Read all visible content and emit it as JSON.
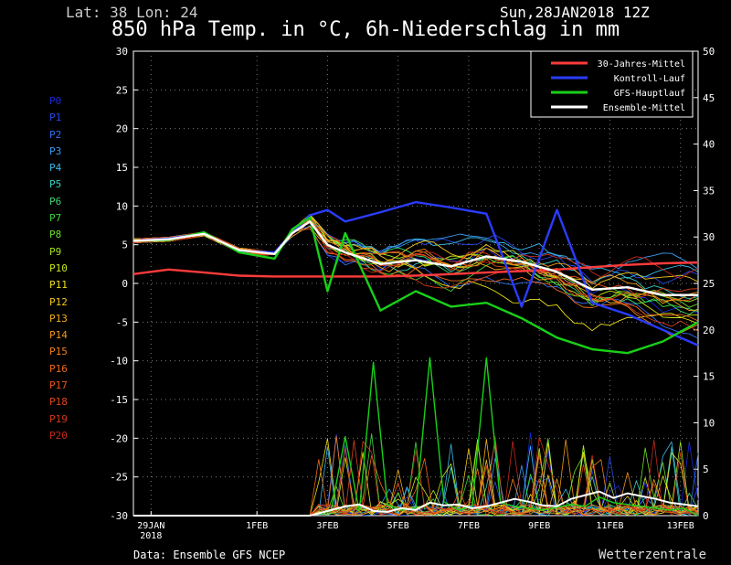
{
  "header": {
    "location": "Lat: 38 Lon: 24",
    "run_date": "Sun,28JAN2018 12Z",
    "title": "850 hPa Temp. in °C, 6h-Niederschlag in mm"
  },
  "footer": {
    "source": "Data: Ensemble GFS NCEP",
    "brand": "Wetterzentrale"
  },
  "members": [
    {
      "label": "P0",
      "color": "#1a2ad8"
    },
    {
      "label": "P1",
      "color": "#2a48e8"
    },
    {
      "label": "P2",
      "color": "#2f6ef0"
    },
    {
      "label": "P3",
      "color": "#3a9cf0"
    },
    {
      "label": "P4",
      "color": "#3ab8e8"
    },
    {
      "label": "P5",
      "color": "#36cfc4"
    },
    {
      "label": "P6",
      "color": "#40d470"
    },
    {
      "label": "P7",
      "color": "#3ad83a"
    },
    {
      "label": "P8",
      "color": "#6ede2a"
    },
    {
      "label": "P9",
      "color": "#a4e21e"
    },
    {
      "label": "P10",
      "color": "#c8e41a"
    },
    {
      "label": "P11",
      "color": "#ece01a"
    },
    {
      "label": "P12",
      "color": "#f0c81a"
    },
    {
      "label": "P13",
      "color": "#f0ae1a"
    },
    {
      "label": "P14",
      "color": "#f0961a"
    },
    {
      "label": "P15",
      "color": "#f07e1a"
    },
    {
      "label": "P16",
      "color": "#f06a1a"
    },
    {
      "label": "P17",
      "color": "#ea541a"
    },
    {
      "label": "P18",
      "color": "#e0441a"
    },
    {
      "label": "P19",
      "color": "#d43a1a"
    },
    {
      "label": "P20",
      "color": "#c42a1a"
    }
  ],
  "chart_data": {
    "type": "line",
    "x_unit": "days since 28JAN2018 12Z",
    "x_range": [
      0,
      16
    ],
    "y_left": {
      "range": [
        -30,
        30
      ],
      "ticks": [
        -30,
        -25,
        -20,
        -15,
        -10,
        -5,
        0,
        5,
        10,
        15,
        20,
        25,
        30
      ]
    },
    "y_right": {
      "range": [
        0,
        50
      ],
      "ticks": [
        0,
        5,
        10,
        15,
        20,
        25,
        30,
        35,
        40,
        45,
        50
      ]
    },
    "x_ticks": [
      {
        "day": 0.5,
        "label": "29JAN",
        "sub": "2018"
      },
      {
        "day": 3.5,
        "label": "1FEB"
      },
      {
        "day": 5.5,
        "label": "3FEB"
      },
      {
        "day": 7.5,
        "label": "5FEB"
      },
      {
        "day": 9.5,
        "label": "7FEB"
      },
      {
        "day": 11.5,
        "label": "9FEB"
      },
      {
        "day": 13.5,
        "label": "11FEB"
      },
      {
        "day": 15.5,
        "label": "13FEB"
      }
    ],
    "grid": "dotted",
    "legend": {
      "position": "top-right",
      "entries": [
        {
          "name": "30-Jahres-Mittel",
          "color": "#ff3b3b"
        },
        {
          "name": "Kontroll-Lauf",
          "color": "#2a3cff"
        },
        {
          "name": "GFS-Hauptlauf",
          "color": "#18d018"
        },
        {
          "name": "Ensemble-Mittel",
          "color": "#ffffff"
        }
      ]
    },
    "series": [
      {
        "name": "30-Jahres-Mittel",
        "axis": "temp",
        "x": [
          0,
          1,
          2,
          3,
          4,
          5,
          6,
          7,
          8,
          9,
          10,
          11,
          12,
          13,
          14,
          15,
          16
        ],
        "values": [
          1.2,
          1.8,
          1.4,
          1.0,
          0.9,
          0.9,
          0.9,
          0.9,
          1.0,
          1.2,
          1.4,
          1.6,
          1.8,
          2.1,
          2.4,
          2.6,
          2.7
        ]
      },
      {
        "name": "Kontroll-Lauf",
        "axis": "temp",
        "x": [
          0,
          1,
          2,
          3,
          4,
          4.5,
          5,
          5.5,
          6,
          7,
          8,
          9,
          10,
          11,
          12,
          13,
          14,
          15,
          16
        ],
        "values": [
          5.5,
          5.8,
          6.5,
          4.2,
          4.0,
          6.5,
          8.8,
          9.5,
          8.0,
          9.2,
          10.5,
          9.8,
          9.0,
          -3.0,
          9.5,
          -2.5,
          -4.0,
          -6.0,
          -8.0
        ]
      },
      {
        "name": "GFS-Hauptlauf",
        "axis": "temp",
        "x": [
          0,
          1,
          2,
          3,
          4,
          4.5,
          5,
          5.5,
          6,
          7,
          8,
          9,
          10,
          11,
          12,
          13,
          14,
          15,
          16
        ],
        "values": [
          5.5,
          5.6,
          6.6,
          4.0,
          3.2,
          7.0,
          8.5,
          -1.0,
          6.5,
          -3.5,
          -1.0,
          -3.0,
          -2.5,
          -4.5,
          -7.0,
          -8.5,
          -9.0,
          -7.5,
          -5.0
        ]
      },
      {
        "name": "Ensemble-Mittel",
        "axis": "temp",
        "x": [
          0,
          1,
          2,
          3,
          4,
          4.5,
          5,
          5.5,
          6,
          7,
          8,
          9,
          10,
          11,
          12,
          13,
          14,
          15,
          16
        ],
        "values": [
          5.5,
          5.7,
          6.4,
          4.3,
          3.8,
          6.5,
          8.0,
          5.0,
          4.0,
          2.5,
          3.0,
          2.2,
          3.5,
          2.8,
          1.5,
          -0.8,
          -0.5,
          -1.5,
          -1.5
        ]
      }
    ],
    "precip_main": {
      "name": "GFS-Hauptlauf",
      "x": [
        0,
        5,
        5.6,
        6,
        6.4,
        6.8,
        7.2,
        7.6,
        8,
        8.4,
        8.8,
        9.2,
        9.6,
        10,
        10.4,
        10.8,
        11.2,
        11.6,
        12,
        12.4,
        12.8,
        13.2,
        13.6,
        14,
        14.4,
        14.8,
        15.2,
        15.6,
        16
      ],
      "values": [
        0,
        0,
        0.5,
        8.5,
        0.4,
        16.5,
        1.2,
        0.6,
        0.8,
        17.0,
        1.5,
        0.6,
        1.0,
        17.0,
        1.4,
        1.0,
        0.8,
        0.6,
        0.9,
        1.2,
        1.0,
        2.0,
        1.4,
        1.2,
        1.0,
        0.8,
        0.6,
        0.8,
        0
      ]
    },
    "precip_mean": {
      "name": "Ensemble-Mittel",
      "x": [
        0,
        5,
        5.6,
        6,
        6.4,
        6.8,
        7.2,
        7.6,
        8,
        8.4,
        8.8,
        9.2,
        9.6,
        10,
        10.4,
        10.8,
        11.2,
        11.6,
        12,
        12.4,
        12.8,
        13.2,
        13.6,
        14,
        14.4,
        14.8,
        15.2,
        15.6,
        16
      ],
      "values": [
        0,
        0,
        0.6,
        1.0,
        1.2,
        0.5,
        0.4,
        0.8,
        0.6,
        1.4,
        1.1,
        1.2,
        0.8,
        1.0,
        1.4,
        1.8,
        1.5,
        1.1,
        1.0,
        1.8,
        2.2,
        2.6,
        1.9,
        2.4,
        2.1,
        1.8,
        1.4,
        1.2,
        1.0
      ]
    }
  }
}
